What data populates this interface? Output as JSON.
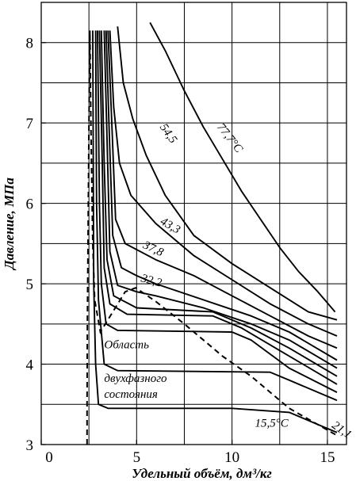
{
  "chart_data": {
    "type": "line",
    "xlabel": "Удельный объём, дм³/кг",
    "ylabel": "Давление, МПа",
    "xlim": [
      0,
      16
    ],
    "ylim": [
      3,
      8.5
    ],
    "x_ticks": [
      "0",
      "5",
      "10",
      "15"
    ],
    "y_ticks": [
      "3",
      "4",
      "5",
      "6",
      "7",
      "8"
    ],
    "grid": true,
    "annotations": [
      {
        "text": "Область",
        "x": 3.3,
        "y": 4.2
      },
      {
        "text": "двухфазного",
        "x": 3.3,
        "y": 3.78
      },
      {
        "text": "состояния",
        "x": 3.3,
        "y": 3.58
      }
    ],
    "saturation_curve": {
      "style": "dashed",
      "points": [
        [
          2.4,
          3.0
        ],
        [
          2.4,
          3.5
        ],
        [
          2.42,
          4.5
        ],
        [
          2.5,
          7.0
        ],
        [
          2.55,
          8.15
        ],
        [
          2.6,
          7.0
        ],
        [
          2.7,
          5.5
        ],
        [
          2.8,
          4.8
        ],
        [
          3.1,
          4.4
        ],
        [
          4.4,
          4.9
        ],
        [
          4.95,
          4.95
        ],
        [
          6.0,
          4.78
        ],
        [
          7.5,
          4.5
        ],
        [
          9.5,
          4.1
        ],
        [
          11.0,
          3.85
        ],
        [
          13.0,
          3.45
        ],
        [
          15.6,
          3.1
        ]
      ]
    },
    "series": [
      {
        "name": "15,5°C",
        "points": [
          [
            2.7,
            8.15
          ],
          [
            2.75,
            5.0
          ],
          [
            2.85,
            4.0
          ],
          [
            3.0,
            3.5
          ],
          [
            3.5,
            3.45
          ],
          [
            10.0,
            3.45
          ],
          [
            13.0,
            3.4
          ],
          [
            14.0,
            3.3
          ],
          [
            15.0,
            3.2
          ],
          [
            15.5,
            3.15
          ]
        ]
      },
      {
        "name": "",
        "points": [
          [
            2.85,
            8.15
          ],
          [
            2.9,
            6.0
          ],
          [
            3.0,
            4.8
          ],
          [
            3.3,
            4.0
          ],
          [
            4.0,
            3.92
          ],
          [
            12.0,
            3.9
          ],
          [
            13.0,
            3.8
          ],
          [
            15.0,
            3.6
          ],
          [
            15.5,
            3.55
          ]
        ]
      },
      {
        "name": "21,1",
        "points": [
          [
            2.95,
            8.15
          ],
          [
            3.05,
            6.0
          ],
          [
            3.15,
            5.0
          ],
          [
            3.4,
            4.5
          ],
          [
            4.0,
            4.42
          ],
          [
            10.0,
            4.4
          ],
          [
            11.0,
            4.3
          ],
          [
            13.0,
            3.95
          ],
          [
            15.5,
            3.65
          ]
        ]
      },
      {
        "name": "",
        "points": [
          [
            3.05,
            8.15
          ],
          [
            3.2,
            6.5
          ],
          [
            3.3,
            5.2
          ],
          [
            3.6,
            4.75
          ],
          [
            4.5,
            4.62
          ],
          [
            9.0,
            4.6
          ],
          [
            10.5,
            4.45
          ],
          [
            13.0,
            4.1
          ],
          [
            15.5,
            3.75
          ]
        ]
      },
      {
        "name": "",
        "points": [
          [
            3.15,
            8.15
          ],
          [
            3.3,
            6.5
          ],
          [
            3.45,
            5.3
          ],
          [
            3.8,
            4.85
          ],
          [
            5.0,
            4.7
          ],
          [
            9.0,
            4.65
          ],
          [
            11.0,
            4.45
          ],
          [
            13.0,
            4.2
          ],
          [
            15.5,
            3.85
          ]
        ]
      },
      {
        "name": "",
        "points": [
          [
            3.3,
            8.15
          ],
          [
            3.45,
            6.8
          ],
          [
            3.6,
            5.4
          ],
          [
            4.0,
            4.98
          ],
          [
            5.0,
            4.9
          ],
          [
            6.0,
            4.85
          ],
          [
            8.5,
            4.7
          ],
          [
            11.0,
            4.5
          ],
          [
            13.0,
            4.3
          ],
          [
            15.5,
            3.95
          ]
        ]
      },
      {
        "name": "32,2",
        "points": [
          [
            3.4,
            8.15
          ],
          [
            3.55,
            7.0
          ],
          [
            3.75,
            5.6
          ],
          [
            4.2,
            5.2
          ],
          [
            5.0,
            5.1
          ],
          [
            6.0,
            5.0
          ],
          [
            8.5,
            4.8
          ],
          [
            11.0,
            4.6
          ],
          [
            13.0,
            4.4
          ],
          [
            15.5,
            4.05
          ]
        ]
      },
      {
        "name": "37,8",
        "points": [
          [
            3.5,
            8.15
          ],
          [
            3.7,
            7.0
          ],
          [
            3.9,
            5.8
          ],
          [
            4.4,
            5.5
          ],
          [
            6.0,
            5.3
          ],
          [
            8.0,
            5.1
          ],
          [
            10.0,
            4.85
          ],
          [
            12.0,
            4.6
          ],
          [
            14.0,
            4.35
          ],
          [
            15.5,
            4.2
          ]
        ]
      },
      {
        "name": "43,3",
        "points": [
          [
            3.6,
            8.15
          ],
          [
            3.8,
            7.2
          ],
          [
            4.1,
            6.5
          ],
          [
            4.7,
            6.1
          ],
          [
            6.0,
            5.75
          ],
          [
            8.0,
            5.35
          ],
          [
            10.0,
            5.05
          ],
          [
            12.0,
            4.75
          ],
          [
            14.0,
            4.5
          ],
          [
            15.5,
            4.35
          ]
        ]
      },
      {
        "name": "54,5",
        "points": [
          [
            4.0,
            8.2
          ],
          [
            4.3,
            7.5
          ],
          [
            4.8,
            7.05
          ],
          [
            5.5,
            6.6
          ],
          [
            6.5,
            6.1
          ],
          [
            8.0,
            5.6
          ],
          [
            10.0,
            5.25
          ],
          [
            12.0,
            4.95
          ],
          [
            14.0,
            4.65
          ],
          [
            15.5,
            4.55
          ]
        ]
      },
      {
        "name": "77,7°C",
        "points": [
          [
            5.7,
            8.25
          ],
          [
            6.5,
            7.9
          ],
          [
            7.5,
            7.4
          ],
          [
            8.5,
            6.95
          ],
          [
            9.5,
            6.55
          ],
          [
            10.5,
            6.15
          ],
          [
            11.5,
            5.8
          ],
          [
            12.5,
            5.45
          ],
          [
            13.5,
            5.15
          ],
          [
            14.5,
            4.9
          ],
          [
            15.4,
            4.65
          ]
        ]
      }
    ]
  }
}
